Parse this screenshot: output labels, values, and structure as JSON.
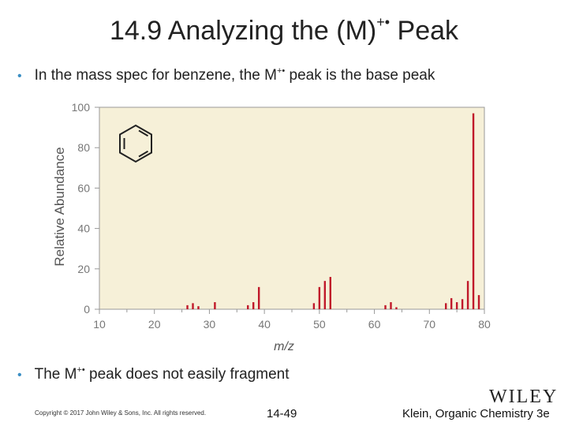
{
  "slide": {
    "title_prefix": "14.9 Analyzing the (M)",
    "title_sup": "+•",
    "title_suffix": " Peak",
    "bullet1_prefix": "In the mass spec for benzene, the M",
    "bullet1_sup": "+•",
    "bullet1_suffix": " peak is the base peak",
    "bullet2_prefix": "The M",
    "bullet2_sup": "+•",
    "bullet2_suffix": " peak does not easily fragment",
    "bullet_glyph": "•"
  },
  "footer": {
    "copyright": "Copyright © 2017 John Wiley & Sons, Inc. All rights reserved.",
    "page": "14-49",
    "book": "Klein, Organic Chemistry 3e",
    "logo": "WILEY"
  },
  "colors": {
    "plot_background": "#f6f0d8",
    "peak": "#c0182a",
    "axis": "#999999",
    "bullet": "#3b8fc4"
  },
  "chart_data": {
    "type": "bar",
    "xlabel": "m/z",
    "ylabel": "Relative Abundance",
    "xlim": [
      10,
      80
    ],
    "ylim": [
      0,
      100
    ],
    "xticks": [
      10,
      20,
      30,
      40,
      50,
      60,
      70,
      80
    ],
    "yticks": [
      0,
      20,
      40,
      60,
      80,
      100
    ],
    "grid": false,
    "inset": "benzene-structure",
    "peaks": [
      {
        "x": 26,
        "y": 2
      },
      {
        "x": 27,
        "y": 3
      },
      {
        "x": 28,
        "y": 1.5
      },
      {
        "x": 31,
        "y": 3.5
      },
      {
        "x": 37,
        "y": 2
      },
      {
        "x": 38,
        "y": 3.5
      },
      {
        "x": 39,
        "y": 11
      },
      {
        "x": 49,
        "y": 3
      },
      {
        "x": 50,
        "y": 11
      },
      {
        "x": 51,
        "y": 14
      },
      {
        "x": 52,
        "y": 16
      },
      {
        "x": 62,
        "y": 2
      },
      {
        "x": 63,
        "y": 3.5
      },
      {
        "x": 64,
        "y": 1
      },
      {
        "x": 73,
        "y": 3
      },
      {
        "x": 74,
        "y": 5.5
      },
      {
        "x": 75,
        "y": 3.5
      },
      {
        "x": 76,
        "y": 5
      },
      {
        "x": 77,
        "y": 14
      },
      {
        "x": 78,
        "y": 97
      },
      {
        "x": 79,
        "y": 7
      }
    ]
  }
}
